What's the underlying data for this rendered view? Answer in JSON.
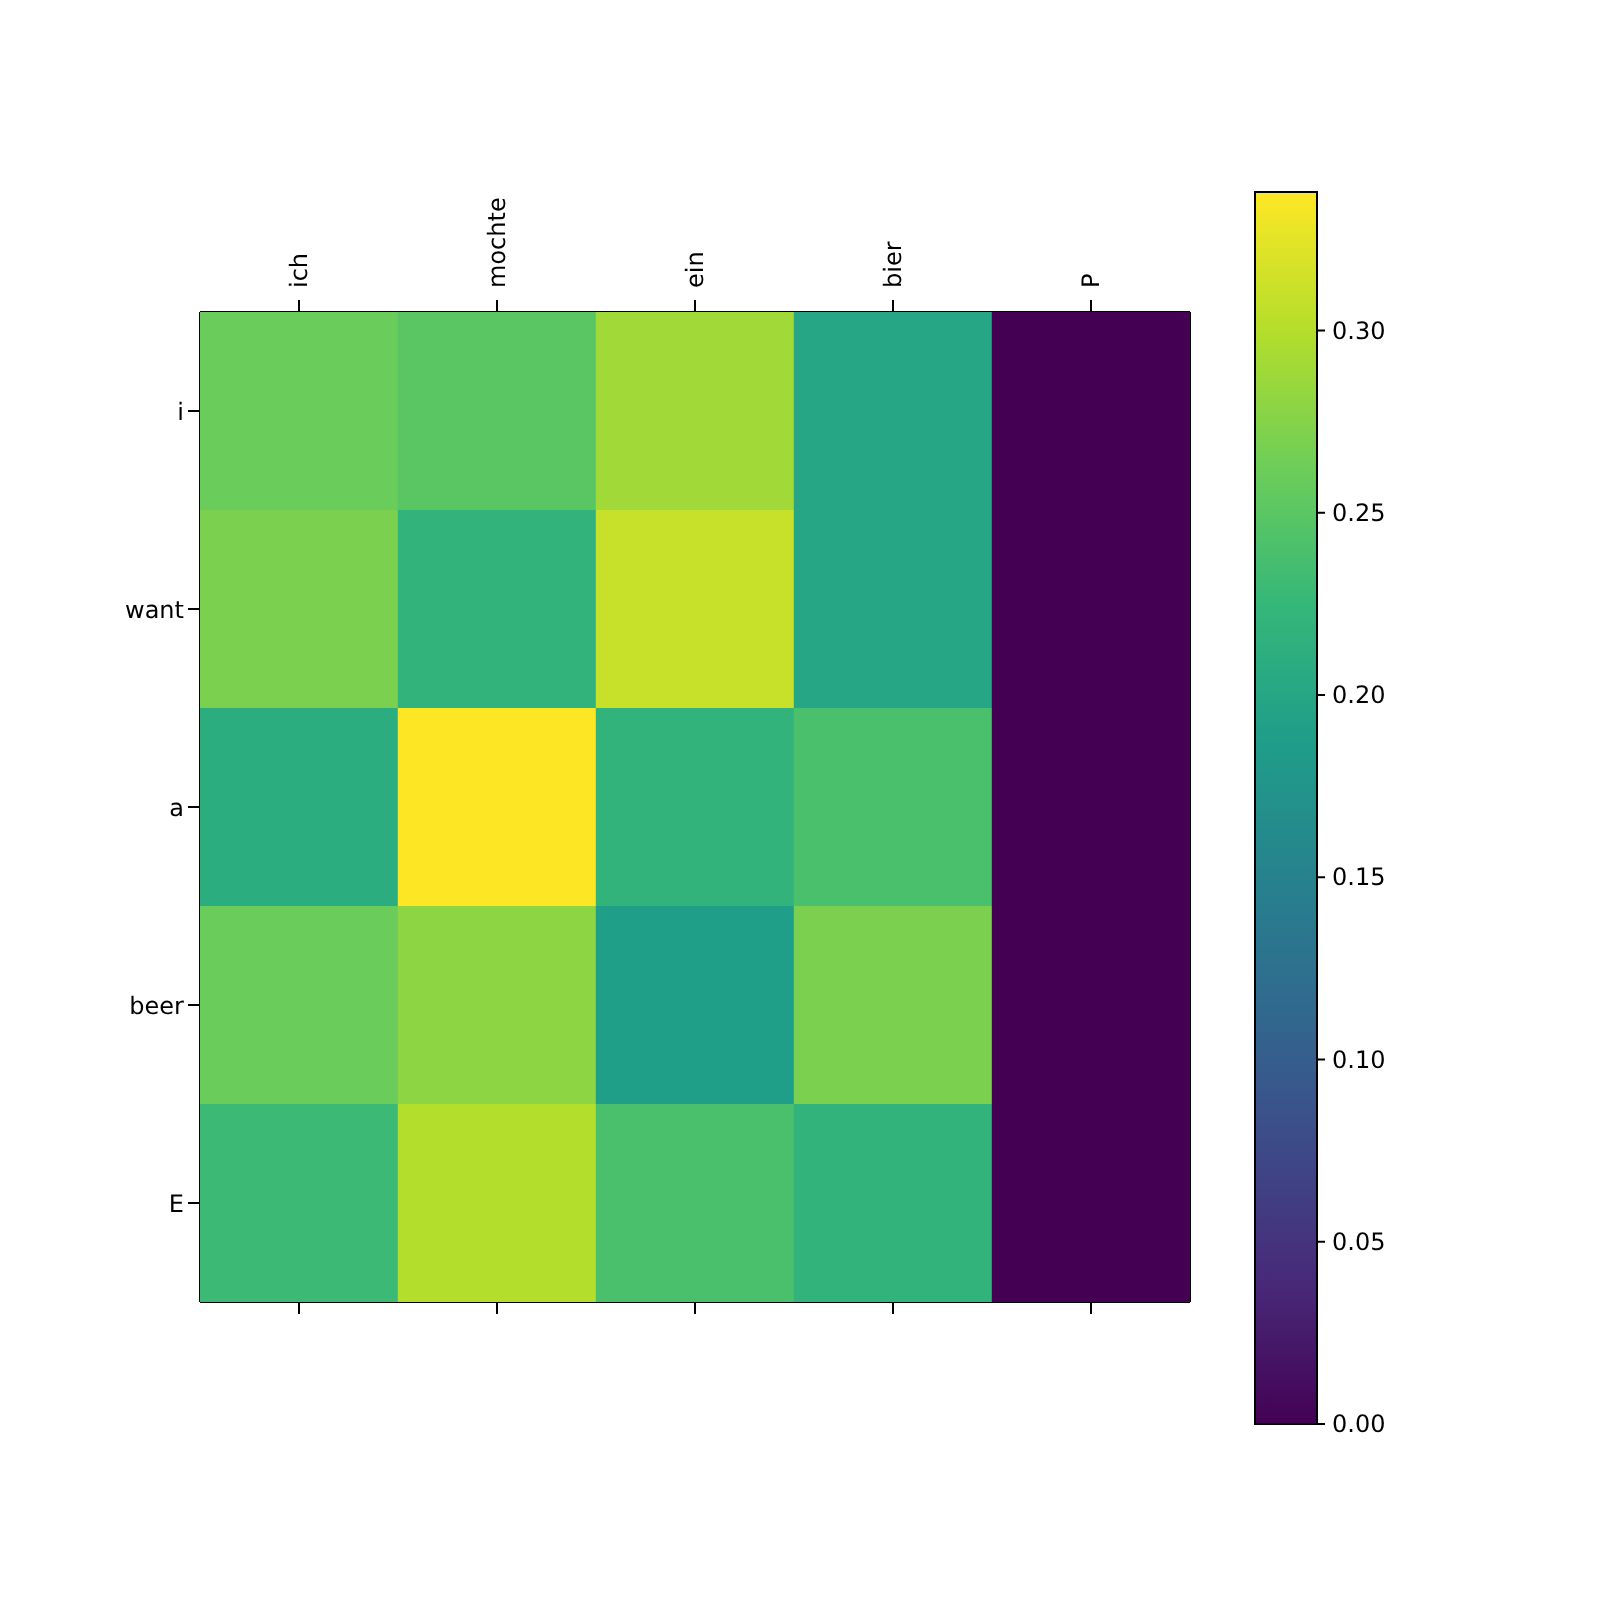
{
  "chart_data": {
    "type": "heatmap",
    "categories": [
      "ich",
      "mochte",
      "ein",
      "bier",
      "P"
    ],
    "y_categories": [
      "i",
      "want",
      "a",
      "beer",
      "E"
    ],
    "cells": [
      [
        0.26,
        0.25,
        0.29,
        0.2,
        0
      ],
      [
        0.27,
        0.22,
        0.31,
        0.2,
        0
      ],
      [
        0.21,
        0.338,
        0.22,
        0.24,
        0
      ],
      [
        0.26,
        0.28,
        0.19,
        0.27,
        0
      ],
      [
        0.23,
        0.3,
        0.24,
        0.22,
        0
      ]
    ],
    "clim": [
      0,
      0.338
    ],
    "cticks": [
      {
        "value": 0,
        "label": "0.00"
      },
      0.05,
      {
        "value": 0.1,
        "label": "0.10"
      },
      0.15,
      {
        "value": 0.2,
        "label": "0.20"
      },
      0.25,
      {
        "value": 0.3,
        "label": "0.30"
      }
    ]
  }
}
